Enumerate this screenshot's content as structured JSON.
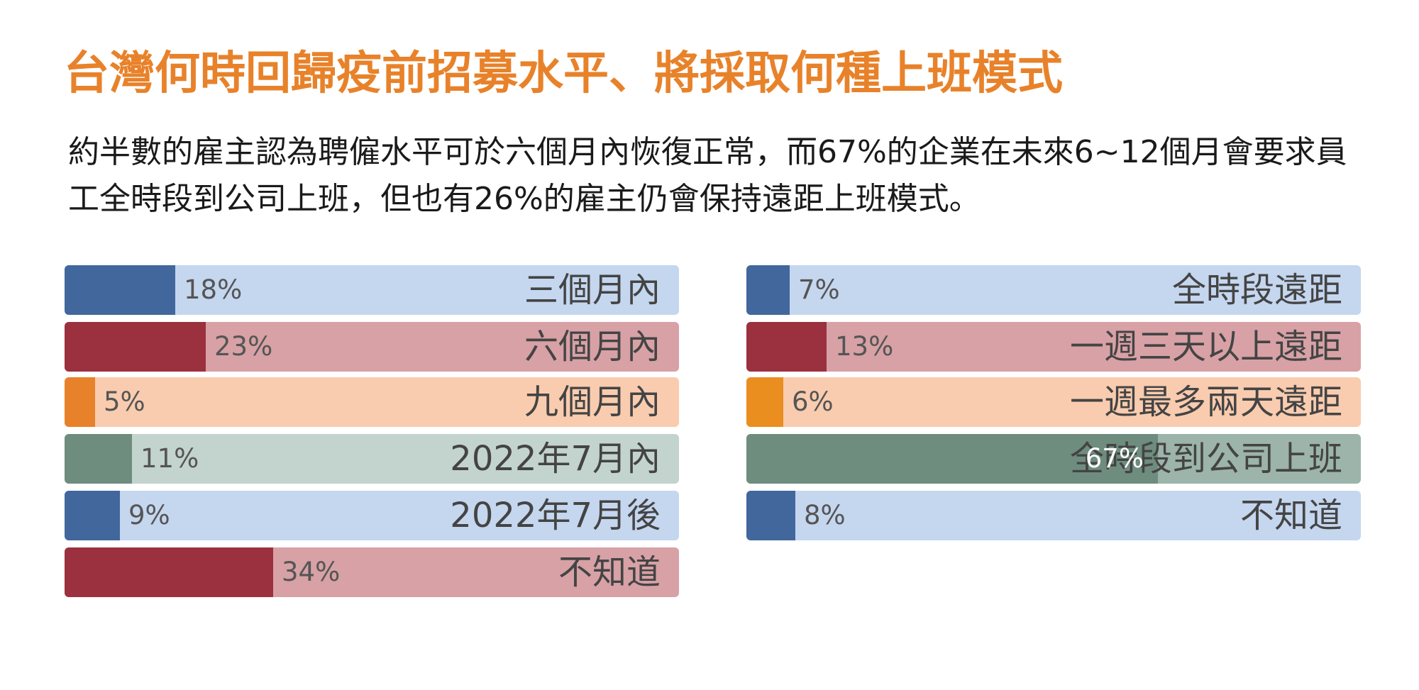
{
  "title": "台灣何時回歸疫前招募水平、將採取何種上班模式",
  "subtitle": "約半數的雇主認為聘僱水平可於六個月內恢復正常，而67%的企業在未來6~12個月會要求員工全時段到公司上班，但也有26%的雇主仍會保持遠距上班模式。",
  "chart_data": [
    {
      "type": "bar",
      "orientation": "horizontal",
      "categories": [
        "三個月內",
        "六個月內",
        "九個月內",
        "2022年7月內",
        "2022年7月後",
        "不知道"
      ],
      "values": [
        18,
        23,
        5,
        11,
        9,
        34
      ],
      "labels": [
        "18%",
        "23%",
        "5%",
        "11%",
        "9%",
        "34%"
      ],
      "colors": [
        "#41679D",
        "#9B313E",
        "#E8822A",
        "#6E8D7F",
        "#41679D",
        "#9B313E"
      ],
      "bg_colors": [
        "#C5D6EF",
        "#D7A1A6",
        "#F9CCAF",
        "#C3D3CD",
        "#C5D6EF",
        "#D7A1A6"
      ],
      "xlim": [
        0,
        100
      ]
    },
    {
      "type": "bar",
      "orientation": "horizontal",
      "categories": [
        "全時段遠距",
        "一週三天以上遠距",
        "一週最多兩天遠距",
        "全時段到公司上班",
        "不知道"
      ],
      "values": [
        7,
        13,
        6,
        67,
        8
      ],
      "labels": [
        "7%",
        "13%",
        "6%",
        "67%",
        "8%"
      ],
      "colors": [
        "#41679D",
        "#9B313E",
        "#EA8E1F",
        "#6E8D7F",
        "#41679D"
      ],
      "bg_colors": [
        "#C5D6EF",
        "#D7A1A6",
        "#F9CCAF",
        "#9CB4AA",
        "#C5D6EF"
      ],
      "xlim": [
        0,
        100
      ]
    }
  ]
}
